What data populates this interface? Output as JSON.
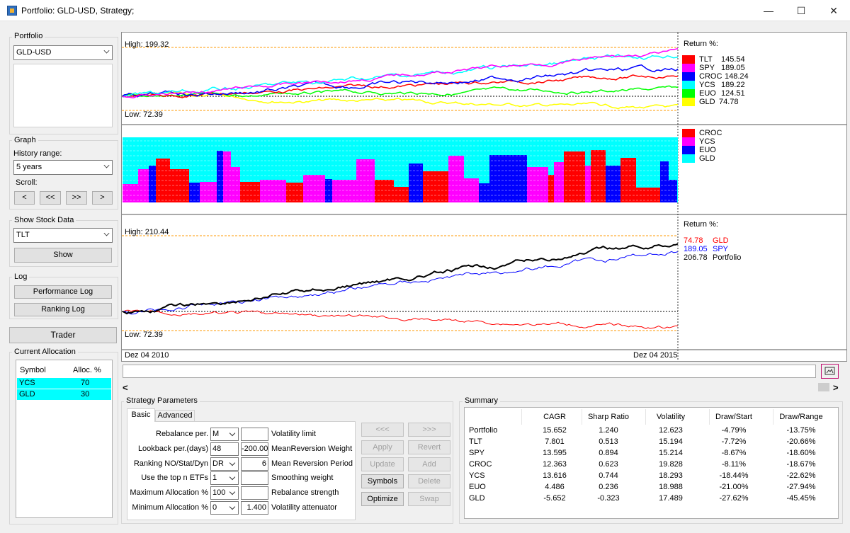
{
  "window": {
    "title": "Portfolio: GLD-USD, Strategy;",
    "minimize": "—",
    "maximize": "☐",
    "close": "✕"
  },
  "sidebar": {
    "portfolio": {
      "group_title": "Portfolio",
      "selected": "GLD-USD"
    },
    "graph": {
      "group_title": "Graph",
      "history_label": "History range:",
      "history_selected": "5 years",
      "scroll_label": "Scroll:",
      "scroll_buttons": [
        "<",
        "<<",
        ">>",
        ">"
      ]
    },
    "stock_data": {
      "group_title": "Show Stock Data",
      "selected": "TLT",
      "show_label": "Show"
    },
    "log": {
      "group_title": "Log",
      "performance_label": "Performance Log",
      "ranking_label": "Ranking Log"
    },
    "trader_label": "Trader",
    "allocation": {
      "group_title": "Current Allocation",
      "columns": [
        "Symbol",
        "Alloc. %"
      ],
      "rows": [
        {
          "symbol": "YCS",
          "alloc": "70"
        },
        {
          "symbol": "GLD",
          "alloc": "30"
        }
      ]
    }
  },
  "chart": {
    "top": {
      "high_label": "High: 199.32",
      "low_label": "Low: 72.39",
      "legend_title": "Return %:",
      "legend": [
        {
          "name": "TLT",
          "value": "145.54",
          "color": "#ff0000"
        },
        {
          "name": "SPY",
          "value": "189.05",
          "color": "#ff00ff"
        },
        {
          "name": "CROC",
          "value": "148.24",
          "color": "#0000ff"
        },
        {
          "name": "YCS",
          "value": "189.22",
          "color": "#00ffff"
        },
        {
          "name": "EUO",
          "value": "124.51",
          "color": "#00ff00"
        },
        {
          "name": "GLD",
          "value": "74.78",
          "color": "#ffff00"
        }
      ]
    },
    "middle": {
      "legend": [
        {
          "name": "CROC",
          "color": "#ff0000"
        },
        {
          "name": "YCS",
          "color": "#ff00ff"
        },
        {
          "name": "EUO",
          "color": "#0000ff"
        },
        {
          "name": "GLD",
          "color": "#00ffff"
        }
      ]
    },
    "bottom": {
      "high_label": "High: 210.44",
      "low_label": "Low: 72.39",
      "legend_title": "Return %:",
      "legend": [
        {
          "value": "74.78",
          "name": "GLD",
          "color": "#ff0000"
        },
        {
          "value": "189.05",
          "name": "SPY",
          "color": "#0000ff"
        },
        {
          "value": "206.78",
          "name": "Portfolio",
          "color": "#000000"
        }
      ]
    },
    "date_start": "Dez 04 2010",
    "date_end": "Dez 04 2015"
  },
  "strategy": {
    "group_title": "Strategy Parameters",
    "tabs": [
      "Basic",
      "Advanced"
    ],
    "params": [
      {
        "label": "Rebalance per.",
        "value": "M",
        "right_value": "",
        "right_label": "Volatility limit",
        "combo": true
      },
      {
        "label": "Lookback per.(days)",
        "value": "48",
        "right_value": "-200.00",
        "right_label": "MeanReversion Weight",
        "combo": false
      },
      {
        "label": "Ranking NO/Stat/Dyn",
        "value": "DR",
        "right_value": "6",
        "right_label": "Mean Reversion Period",
        "combo": true
      },
      {
        "label": "Use the top n ETFs",
        "value": "1",
        "right_value": "",
        "right_label": "Smoothing  weight",
        "combo": true
      },
      {
        "label": "Maximum Allocation %",
        "value": "100",
        "right_value": "",
        "right_label": "Rebalance strength",
        "combo": true
      },
      {
        "label": "Minimum Allocation %",
        "value": "0",
        "right_value": "1.400",
        "right_label": "Volatility attenuator",
        "combo": true
      }
    ],
    "buttons": {
      "prev": "<<<",
      "next": ">>>",
      "apply": "Apply",
      "revert": "Revert",
      "update": "Update",
      "add": "Add",
      "symbols": "Symbols",
      "delete": "Delete",
      "optimize": "Optimize",
      "swap": "Swap"
    }
  },
  "summary": {
    "group_title": "Summary",
    "columns": [
      "",
      "CAGR",
      "Sharp Ratio",
      "Volatility",
      "Draw/Start",
      "Draw/Range"
    ],
    "rows": [
      [
        "Portfolio",
        "15.652",
        "1.240",
        "12.623",
        "-4.79%",
        "-13.75%"
      ],
      [
        "TLT",
        "7.801",
        "0.513",
        "15.194",
        "-7.72%",
        "-20.66%"
      ],
      [
        "SPY",
        "13.595",
        "0.894",
        "15.214",
        "-8.67%",
        "-18.60%"
      ],
      [
        "CROC",
        "12.363",
        "0.623",
        "19.828",
        "-8.11%",
        "-18.67%"
      ],
      [
        "YCS",
        "13.616",
        "0.744",
        "18.293",
        "-18.44%",
        "-22.62%"
      ],
      [
        "EUO",
        "4.486",
        "0.236",
        "18.988",
        "-21.00%",
        "-27.94%"
      ],
      [
        "GLD",
        "-5.652",
        "-0.323",
        "17.489",
        "-27.62%",
        "-45.45%"
      ]
    ]
  },
  "hscroll": {
    "left_arrow": "<",
    "right_arrow": ">"
  }
}
